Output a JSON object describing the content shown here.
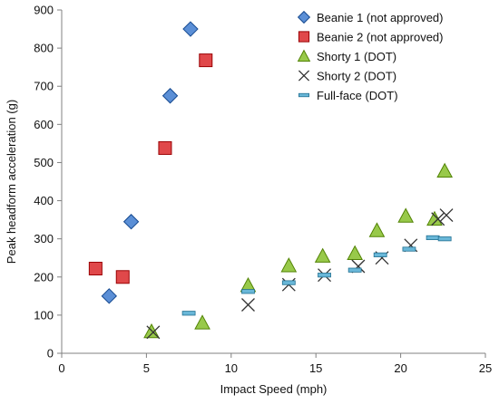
{
  "chart_data": {
    "type": "scatter",
    "title": "",
    "xlabel": "Impact Speed (mph)",
    "ylabel": "Peak headform acceleration (g)",
    "xlim": [
      0,
      25
    ],
    "ylim": [
      0,
      900
    ],
    "x_ticks": [
      0,
      5,
      10,
      15,
      20,
      25
    ],
    "y_ticks": [
      0,
      100,
      200,
      300,
      400,
      500,
      600,
      700,
      800,
      900
    ],
    "grid": false,
    "legend_position": "top-right",
    "series": [
      {
        "name": "Beanie 1 (not approved)",
        "marker": "diamond",
        "color": "#5b8fd6",
        "points": [
          [
            2.8,
            150
          ],
          [
            4.1,
            345
          ],
          [
            6.4,
            675
          ],
          [
            7.6,
            850
          ]
        ]
      },
      {
        "name": "Beanie 2 (not approved)",
        "marker": "square",
        "color": "#e0484a",
        "points": [
          [
            2.0,
            222
          ],
          [
            3.6,
            200
          ],
          [
            6.1,
            538
          ],
          [
            8.5,
            768
          ]
        ]
      },
      {
        "name": "Shorty 1 (DOT)",
        "marker": "triangle",
        "color": "#98c94a",
        "points": [
          [
            5.3,
            57
          ],
          [
            8.3,
            80
          ],
          [
            11.0,
            178
          ],
          [
            13.4,
            230
          ],
          [
            15.4,
            255
          ],
          [
            17.3,
            262
          ],
          [
            18.6,
            322
          ],
          [
            20.3,
            360
          ],
          [
            22.0,
            352
          ],
          [
            22.6,
            478
          ]
        ]
      },
      {
        "name": "Shorty 2 (DOT)",
        "marker": "x",
        "color": "#333333",
        "points": [
          [
            5.4,
            55
          ],
          [
            11.0,
            127
          ],
          [
            13.4,
            180
          ],
          [
            15.5,
            205
          ],
          [
            17.5,
            228
          ],
          [
            18.9,
            250
          ],
          [
            20.6,
            283
          ],
          [
            22.2,
            352
          ],
          [
            22.7,
            362
          ]
        ]
      },
      {
        "name": "Full-face (DOT)",
        "marker": "dash",
        "color": "#69b7d8",
        "points": [
          [
            7.5,
            105
          ],
          [
            11.0,
            162
          ],
          [
            13.4,
            185
          ],
          [
            15.5,
            205
          ],
          [
            17.3,
            218
          ],
          [
            18.8,
            258
          ],
          [
            20.5,
            273
          ],
          [
            21.9,
            303
          ],
          [
            22.6,
            300
          ]
        ]
      }
    ]
  }
}
